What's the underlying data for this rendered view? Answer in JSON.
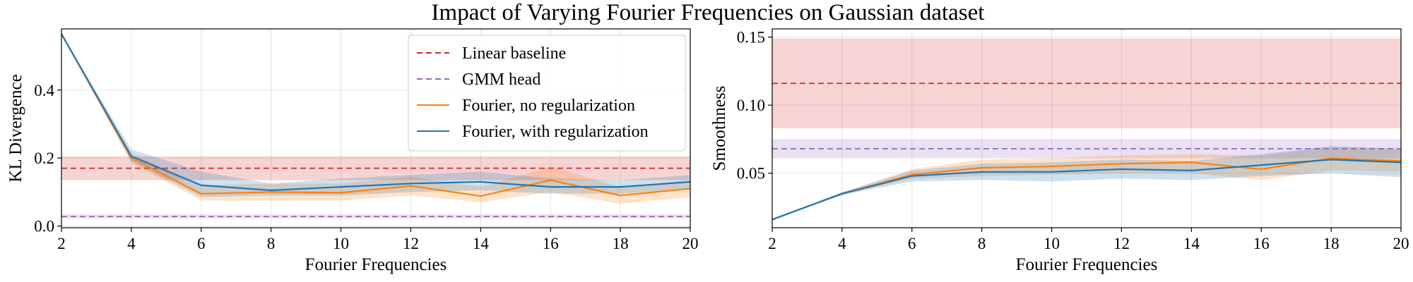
{
  "title": "Impact of Varying Fourier Frequencies on Gaussian dataset",
  "colors": {
    "linear": "#d62728",
    "gmm": "#9467bd",
    "fourier_noreg": "#ff7f0e",
    "fourier_reg": "#1f77b4"
  },
  "legend": {
    "placement": "upper right",
    "entries": [
      "Linear baseline",
      "GMM head",
      "Fourier, no regularization",
      "Fourier, with regularization"
    ]
  },
  "chart_data": [
    {
      "type": "line",
      "title": "",
      "xlabel": "Fourier Frequencies",
      "ylabel": "KL Divergence",
      "xlim": [
        2,
        20
      ],
      "ylim": [
        -0.005,
        0.58
      ],
      "xticks": [
        2,
        4,
        6,
        8,
        10,
        12,
        14,
        16,
        18,
        20
      ],
      "yticks": [
        "0.0",
        "0.2",
        "0.4"
      ],
      "grid": true,
      "x": [
        2,
        4,
        6,
        8,
        10,
        12,
        14,
        16,
        18,
        20
      ],
      "baselines": [
        {
          "name": "Linear baseline",
          "value": 0.17,
          "band": [
            0.135,
            0.205
          ]
        },
        {
          "name": "GMM head",
          "value": 0.028,
          "band": [
            0.022,
            0.034
          ]
        }
      ],
      "series": [
        {
          "name": "Fourier, no regularization",
          "values": [
            0.565,
            0.2,
            0.095,
            0.1,
            0.098,
            0.118,
            0.088,
            0.135,
            0.09,
            0.11
          ],
          "lower": [
            0.565,
            0.185,
            0.075,
            0.075,
            0.075,
            0.09,
            0.07,
            0.1,
            0.065,
            0.085
          ],
          "upper": [
            0.565,
            0.215,
            0.12,
            0.125,
            0.125,
            0.145,
            0.115,
            0.175,
            0.115,
            0.135
          ]
        },
        {
          "name": "Fourier, with regularization",
          "values": [
            0.565,
            0.205,
            0.12,
            0.105,
            0.115,
            0.125,
            0.13,
            0.115,
            0.115,
            0.13
          ],
          "lower": [
            0.565,
            0.19,
            0.085,
            0.09,
            0.09,
            0.1,
            0.105,
            0.095,
            0.095,
            0.11
          ],
          "upper": [
            0.565,
            0.225,
            0.16,
            0.125,
            0.14,
            0.15,
            0.16,
            0.14,
            0.135,
            0.15
          ]
        }
      ]
    },
    {
      "type": "line",
      "title": "",
      "xlabel": "Fourier Frequencies",
      "ylabel": "Smoothness",
      "xlim": [
        2,
        20
      ],
      "ylim": [
        0.01,
        0.156
      ],
      "xticks": [
        2,
        4,
        6,
        8,
        10,
        12,
        14,
        16,
        18,
        20
      ],
      "yticks": [
        "0.05",
        "0.10",
        "0.15"
      ],
      "grid": true,
      "x": [
        2,
        4,
        6,
        8,
        10,
        12,
        14,
        16,
        18,
        20
      ],
      "baselines": [
        {
          "name": "Linear baseline",
          "value": 0.116,
          "band": [
            0.083,
            0.149
          ]
        },
        {
          "name": "GMM head",
          "value": 0.068,
          "band": [
            0.061,
            0.075
          ]
        }
      ],
      "series": [
        {
          "name": "Fourier, no regularization",
          "values": [
            0.016,
            0.035,
            0.049,
            0.054,
            0.055,
            0.057,
            0.058,
            0.053,
            0.061,
            0.059
          ],
          "lower": [
            0.016,
            0.034,
            0.046,
            0.048,
            0.049,
            0.05,
            0.05,
            0.045,
            0.052,
            0.051
          ],
          "upper": [
            0.016,
            0.036,
            0.053,
            0.06,
            0.061,
            0.063,
            0.064,
            0.063,
            0.069,
            0.067
          ]
        },
        {
          "name": "Fourier, with regularization",
          "values": [
            0.016,
            0.035,
            0.048,
            0.051,
            0.051,
            0.053,
            0.052,
            0.056,
            0.06,
            0.058
          ],
          "lower": [
            0.016,
            0.034,
            0.044,
            0.045,
            0.044,
            0.046,
            0.045,
            0.048,
            0.05,
            0.047
          ],
          "upper": [
            0.016,
            0.036,
            0.052,
            0.057,
            0.058,
            0.06,
            0.059,
            0.064,
            0.07,
            0.068
          ]
        }
      ]
    }
  ]
}
